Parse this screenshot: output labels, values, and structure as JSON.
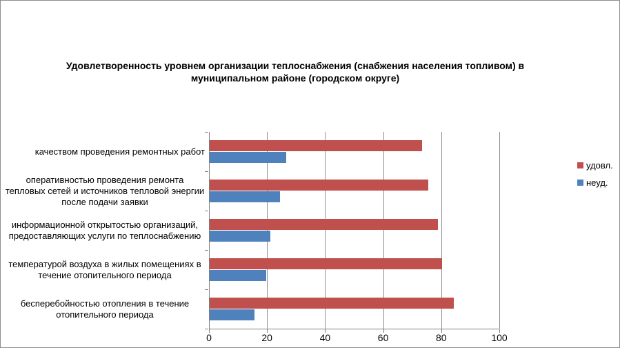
{
  "title": "Удовлетворенность уровнем организации  теплоснабжения (снабжения населения топливом) в муниципальном районе (городском округе)",
  "legend": {
    "position": "right",
    "items": [
      {
        "label": "удовл.",
        "color": "#C0504D"
      },
      {
        "label": "неуд.",
        "color": "#4F81BD"
      }
    ]
  },
  "x_axis": {
    "min": 0,
    "max": 100,
    "ticks": [
      0,
      20,
      40,
      60,
      80,
      100
    ]
  },
  "colors": {
    "series_satisfied": "#C0504D",
    "series_unsatisfied": "#4F81BD",
    "gridline": "#8E8E8E",
    "axis": "#7F7F7F",
    "frame_border": "#8C8C8C",
    "background": "#FFFFFF",
    "text": "#000000"
  },
  "chart_data": {
    "type": "bar",
    "orientation": "horizontal",
    "title": "Удовлетворенность уровнем организации  теплоснабжения (снабжения населения топливом) в муниципальном районе (городском округе)",
    "categories": [
      "качеством проведения ремонтных работ",
      "оперативностью проведения ремонта тепловых сетей и источников тепловой энергии после подачи заявки",
      "информационной открытостью организаций, предоставляющих услуги по теплоснабжению",
      "температурой воздуха в жилых помещениях  в течение  отопительного периода",
      "бесперебойностью  отопления в течение отопительного периода"
    ],
    "series": [
      {
        "name": "удовл.",
        "color": "#C0504D",
        "values": [
          73.5,
          75.5,
          78.8,
          80.2,
          84.3
        ]
      },
      {
        "name": "неуд.",
        "color": "#4F81BD",
        "values": [
          26.5,
          24.5,
          21.2,
          19.8,
          15.7
        ]
      }
    ],
    "xlim": [
      0,
      100
    ],
    "gridlines": true,
    "legend_position": "right",
    "xlabel": "",
    "ylabel": ""
  }
}
